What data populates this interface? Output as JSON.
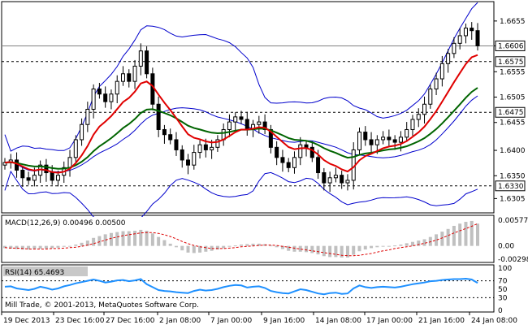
{
  "chart_data": [
    {
      "type": "candlestick",
      "panel": "price",
      "ylim": [
        1.628,
        1.669
      ],
      "y_ticks": [
        "1.6655",
        "1.6606",
        "1.6555",
        "1.6505",
        "1.6455",
        "1.6400",
        "1.6350",
        "1.6305"
      ],
      "y_tick_values": [
        1.6655,
        1.6606,
        1.6555,
        1.6505,
        1.6455,
        1.64,
        1.635,
        1.6305
      ],
      "current_price": "1.6606",
      "current_price_value": 1.6606,
      "levels": [
        {
          "label": "1.6575",
          "value": 1.6575
        },
        {
          "label": "1.6475",
          "value": 1.6475
        },
        {
          "label": "1.6330",
          "value": 1.633
        }
      ],
      "closes": [
        1.6376,
        1.6381,
        1.6361,
        1.6346,
        1.6341,
        1.6351,
        1.6371,
        1.6356,
        1.6341,
        1.6351,
        1.6366,
        1.6386,
        1.6421,
        1.6451,
        1.6481,
        1.6521,
        1.6511,
        1.6496,
        1.6511,
        1.6536,
        1.6551,
        1.6536,
        1.6566,
        1.6596,
        1.6551,
        1.6491,
        1.6441,
        1.6431,
        1.6421,
        1.6401,
        1.6381,
        1.6371,
        1.6396,
        1.6411,
        1.6401,
        1.6406,
        1.6421,
        1.6441,
        1.6456,
        1.6466,
        1.6461,
        1.6441,
        1.6451,
        1.6456,
        1.6441,
        1.6406,
        1.6386,
        1.6376,
        1.6366,
        1.6386,
        1.6411,
        1.6406,
        1.6386,
        1.6356,
        1.6336,
        1.6346,
        1.6351,
        1.6336,
        1.6341,
        1.6401,
        1.6436,
        1.6421,
        1.6411,
        1.6421,
        1.6426,
        1.6421,
        1.6416,
        1.6426,
        1.6441,
        1.6461,
        1.6471,
        1.6491,
        1.6521,
        1.6541,
        1.6571,
        1.6591,
        1.6611,
        1.6626,
        1.6641,
        1.6636,
        1.6606
      ]
    },
    {
      "type": "histogram",
      "panel": "macd",
      "title": "MACD(12,26,9) 0.00496 0.00500",
      "ylim": [
        -0.00298,
        0.00577
      ],
      "y_ticks": [
        "0.00577",
        "0.00",
        "-0.00298"
      ],
      "y_tick_values": [
        0.00577,
        0.0,
        -0.00298
      ],
      "values": [
        -0.0005,
        -0.0006,
        -0.0007,
        -0.0008,
        -0.0008,
        -0.0007,
        -0.0006,
        -0.0006,
        -0.0005,
        -0.0004,
        -0.0002,
        0.0,
        0.0003,
        0.0007,
        0.0012,
        0.0018,
        0.0022,
        0.0026,
        0.0029,
        0.0031,
        0.0033,
        0.0033,
        0.0034,
        0.0036,
        0.0034,
        0.0028,
        0.002,
        0.0013,
        0.0005,
        -0.0003,
        -0.001,
        -0.0015,
        -0.0016,
        -0.0015,
        -0.0013,
        -0.0011,
        -0.0008,
        -0.0005,
        -0.0002,
        0.0001,
        0.0003,
        0.0004,
        0.0005,
        0.0005,
        0.0004,
        0.0001,
        -0.0003,
        -0.0007,
        -0.0011,
        -0.0013,
        -0.0013,
        -0.0014,
        -0.0016,
        -0.0019,
        -0.0023,
        -0.0025,
        -0.0025,
        -0.0026,
        -0.0026,
        -0.002,
        -0.0012,
        -0.0008,
        -0.0005,
        -0.0003,
        -0.0001,
        0.0,
        0.0001,
        0.0003,
        0.0006,
        0.0009,
        0.0012,
        0.0015,
        0.002,
        0.0026,
        0.0032,
        0.0038,
        0.0045,
        0.005,
        0.0054,
        0.0056,
        0.005
      ],
      "signal": [
        -0.0004,
        -0.0005,
        -0.0005,
        -0.0006,
        -0.0007,
        -0.0007,
        -0.0007,
        -0.0007,
        -0.0006,
        -0.0006,
        -0.0005,
        -0.0004,
        -0.0003,
        -0.0001,
        0.0002,
        0.0005,
        0.0009,
        0.0013,
        0.0017,
        0.002,
        0.0023,
        0.0025,
        0.0027,
        0.0029,
        0.003,
        0.003,
        0.0028,
        0.0025,
        0.0021,
        0.0016,
        0.001,
        0.0005,
        0.0001,
        -0.0002,
        -0.0004,
        -0.0006,
        -0.0006,
        -0.0006,
        -0.0005,
        -0.0004,
        -0.0002,
        -0.0001,
        0.0,
        0.0001,
        0.0002,
        0.0002,
        0.0001,
        -0.0001,
        -0.0003,
        -0.0005,
        -0.0007,
        -0.0009,
        -0.0011,
        -0.0013,
        -0.0015,
        -0.0017,
        -0.0019,
        -0.0021,
        -0.0022,
        -0.0022,
        -0.0021,
        -0.0019,
        -0.0017,
        -0.0014,
        -0.0011,
        -0.0009,
        -0.0006,
        -0.0004,
        -0.0002,
        0.0,
        0.0003,
        0.0006,
        0.0009,
        0.0013,
        0.0018,
        0.0023,
        0.0029,
        0.0034,
        0.0039,
        0.0044,
        0.005
      ]
    },
    {
      "type": "line",
      "panel": "rsi",
      "title": "RSI(14) 65.4693",
      "ylim": [
        0,
        100
      ],
      "y_ticks": [
        "100",
        "70",
        "50",
        "30",
        "0"
      ],
      "y_tick_values": [
        100,
        70,
        50,
        30,
        0
      ],
      "values": [
        56,
        57,
        52,
        50,
        48,
        51,
        56,
        53,
        49,
        52,
        57,
        60,
        64,
        67,
        70,
        73,
        70,
        66,
        68,
        71,
        72,
        69,
        71,
        74,
        62,
        55,
        48,
        46,
        45,
        43,
        42,
        41,
        46,
        49,
        47,
        48,
        51,
        55,
        58,
        60,
        59,
        54,
        56,
        57,
        53,
        46,
        43,
        41,
        40,
        45,
        50,
        48,
        44,
        40,
        38,
        41,
        42,
        39,
        40,
        52,
        59,
        55,
        53,
        55,
        56,
        55,
        54,
        56,
        59,
        62,
        64,
        66,
        69,
        70,
        72,
        73,
        74,
        74,
        75,
        73,
        65
      ]
    }
  ],
  "x_axis": [
    "19 Dec 2013",
    "23 Dec 16:00",
    "27 Dec 16:00",
    "2 Jan 08:00",
    "7 Jan 00:00",
    "9 Jan 16:00",
    "14 Jan 08:00",
    "17 Jan 00:00",
    "21 Jan 16:00",
    "24 Jan 08:00"
  ],
  "copyright": "Mill Trade, © 2001-2013, MetaQuotes Software Corp.",
  "colors": {
    "candle": "#000000",
    "bollinger": "#0000cc",
    "ma_fast": "#e00000",
    "ma_slow": "#006400",
    "macd_hist": "#c0c0c0",
    "macd_signal": "#dd0000",
    "rsi_line": "#1e90ff",
    "level_tag": "#ffffff",
    "price_tag": "#ffffff"
  }
}
